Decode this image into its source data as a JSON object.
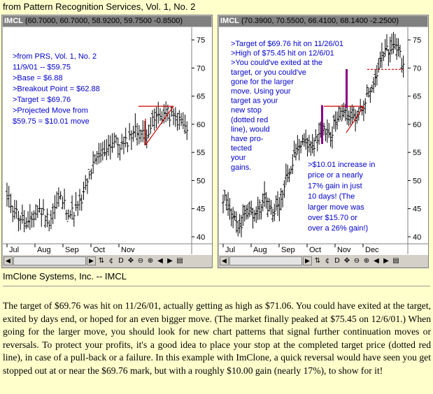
{
  "page_title": "from Pattern Recognition Services, Vol. 1, No. 2",
  "left_chart": {
    "symbol": "IMCL",
    "quote": "(60.7000, 60.7000, 58.9200, 59.7500 -0.8500)",
    "notes": [
      ">from PRS, Vol. 1, No. 2",
      "  11/9/01 -- $59.75",
      ">Base = $6.88",
      ">Breakout Point = $62.88",
      ">Target = $69.76",
      ">Projected Move from",
      "  $59.75 = $10.01 move"
    ]
  },
  "right_chart": {
    "symbol": "IMCL",
    "quote": "(70.3900, 70.5500, 66.4100, 68.1400 -2.2500)",
    "notes": [
      ">Target of $69.76 hit on 11/26/01",
      ">High of $75.45 hit on 12/6/01",
      ">You could've exited at the",
      "target, or you could've",
      "gone for the larger",
      "move. Using your",
      "target as your",
      "new stop",
      "(dotted red",
      "line), would",
      "have pro-",
      "tected",
      "your",
      "gains."
    ],
    "notes2": [
      ">$10.01 increase in",
      "price or a nearly",
      "17% gain in just",
      "10 days! (The",
      "larger move was",
      "over $15.70 or",
      "over a 26% gain!)"
    ]
  },
  "chart_data": [
    {
      "type": "ohlc",
      "y_ticks": [
        40,
        45,
        50,
        55,
        60,
        65,
        70,
        75
      ],
      "ylim": [
        39,
        77
      ],
      "x_ticks": [
        "Jul",
        "Aug",
        "Sep",
        "Oct",
        "Nov"
      ]
    },
    {
      "type": "ohlc",
      "y_ticks": [
        40,
        45,
        50,
        55,
        60,
        65,
        70,
        75
      ],
      "ylim": [
        39,
        77
      ],
      "x_ticks": [
        "Jul",
        "Aug",
        "Sep",
        "Oct",
        "Nov",
        "Dec"
      ]
    }
  ],
  "toolbar_icons": [
    "scroll-left-icon",
    "scroll-right-icon",
    "cycle-icon",
    "data-icon",
    "d-icon",
    "move-icon",
    "zoom-out-icon",
    "zoom-in-icon",
    "prev-icon",
    "next-icon",
    "menu-icon"
  ],
  "toolbar_labels": {
    "cycle": "⇅",
    "d": "D",
    "move": "✥",
    "zoomout": "⊖",
    "zoomin": "⊕",
    "prev": "◀",
    "next": "▶",
    "menu": "▤",
    "left": "◀",
    "right": "▶"
  },
  "caption": "ImClone Systems, Inc. -- IMCL",
  "body": "The target of $69.76 was hit on 11/26/01, actually getting as high as $71.06. You could have exited at the target, exited by days end, or hoped for an even bigger move. (The market finally peaked at $75.45 on 12/6/01.) When going for the larger move, you should look for new chart patterns that signal further continuation moves or reversals. To protect your profits, it's a good idea to place your stop at the completed target price (dotted red line), in case of a pull-back or a failure. In this example with ImClone, a quick reversal would have seen you get stopped out at or near the $69.76 mark, but with a roughly $10.00 gain (nearly 17%), to show for it!",
  "colors": {
    "annotation": "#0000cc",
    "trend": "#cc0000",
    "volume_bar": "#880088",
    "background": "#ffffcc"
  }
}
